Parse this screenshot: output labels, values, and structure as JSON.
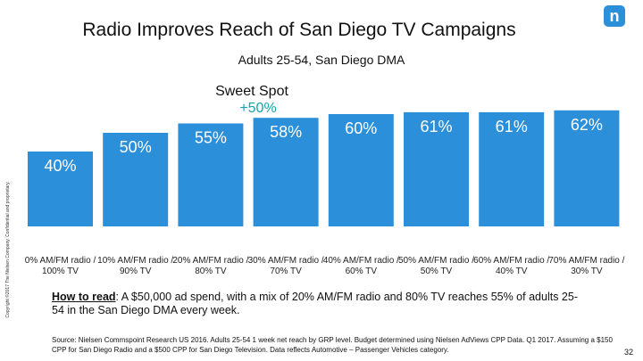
{
  "chart_data": {
    "type": "bar",
    "title": "Radio Improves Reach of San Diego TV Campaigns",
    "subtitle": "Adults 25-54, San Diego DMA",
    "annotation": {
      "label": "Sweet Spot",
      "value": "+50%",
      "color": "#14a4a8"
    },
    "categories": [
      "0% AM/FM radio / 100% TV",
      "10% AM/FM radio / 90% TV",
      "20% AM/FM radio / 80% TV",
      "30% AM/FM radio / 70% TV",
      "40% AM/FM radio / 60% TV",
      "50% AM/FM radio / 50% TV",
      "60% AM/FM radio / 40% TV",
      "70% AM/FM radio / 30% TV"
    ],
    "values": [
      40,
      50,
      55,
      58,
      60,
      61,
      61,
      62
    ],
    "value_labels": [
      "40%",
      "50%",
      "55%",
      "58%",
      "60%",
      "61%",
      "61%",
      "62%"
    ],
    "color": "#2b8fd9"
  },
  "how_to_read": {
    "label": "How to read",
    "text": ": A $50,000 ad spend, with a mix of 20% AM/FM radio and 80% TV reaches 55% of adults 25-54 in the San Diego DMA every week."
  },
  "source": "Source: Nielsen Commspoint Research US 2016. Adults 25-54 1 week net reach by GRP level. Budget determined using Nielsen AdViews CPP Data. Q1 2017. Assuming a $150 CPP for San Diego Radio and a $500 CPP for San Diego Television. Data reflects Automotive – Passenger Vehicles category.",
  "copyright": "Copyright ©2017 The Nielsen Company. Confidential and proprietary.",
  "logo": "n",
  "page_number": "32"
}
